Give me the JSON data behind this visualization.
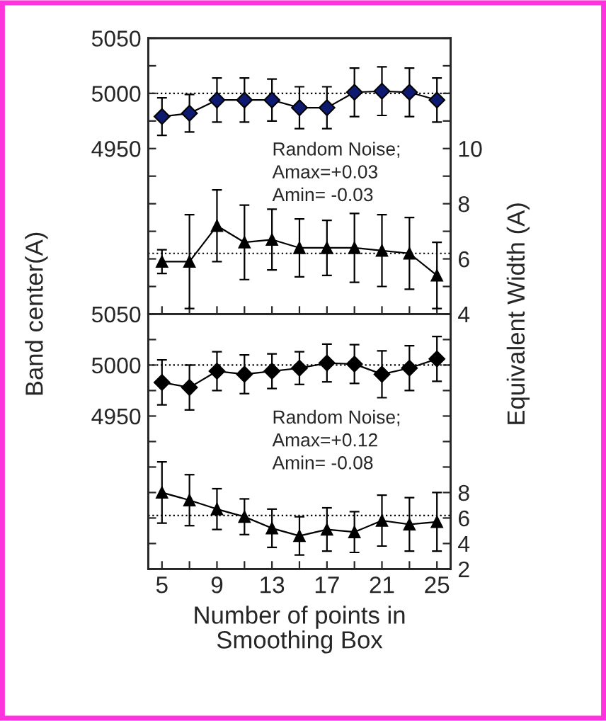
{
  "chart_data": [
    {
      "type": "line",
      "ylabel": "Band center(A)",
      "y2label": "Equivalent Width (A)",
      "x": [
        5,
        7,
        9,
        11,
        13,
        15,
        17,
        19,
        21,
        23,
        25
      ],
      "xlim": [
        4,
        26
      ],
      "xticks": [
        {
          "value": 5,
          "label": null
        },
        {
          "value": 7,
          "label": null
        },
        {
          "value": 9,
          "label": null
        },
        {
          "value": 11,
          "label": null
        },
        {
          "value": 13,
          "label": null
        },
        {
          "value": 15,
          "label": null
        },
        {
          "value": 17,
          "label": null
        },
        {
          "value": 19,
          "label": null
        },
        {
          "value": 21,
          "label": null
        },
        {
          "value": 23,
          "label": null
        },
        {
          "value": 25,
          "label": null
        }
      ],
      "ylim": [
        4800,
        5050
      ],
      "yticks": [
        {
          "value": 4800,
          "label": null
        },
        {
          "value": 4825,
          "label": null
        },
        {
          "value": 4850,
          "label": null
        },
        {
          "value": 4875,
          "label": null
        },
        {
          "value": 4900,
          "label": null
        },
        {
          "value": 4925,
          "label": null
        },
        4950,
        {
          "value": 4975,
          "label": null
        },
        5000,
        {
          "value": 5025,
          "label": null
        },
        5050
      ],
      "y2lim": [
        4,
        14
      ],
      "y2ticks": [
        4,
        {
          "value": 5,
          "label": null
        },
        6,
        {
          "value": 7,
          "label": null
        },
        8,
        {
          "value": 9,
          "label": null
        },
        10,
        {
          "value": 11,
          "label": null
        },
        {
          "value": 12,
          "label": null
        },
        {
          "value": 13,
          "label": null
        },
        {
          "value": 14,
          "label": null
        }
      ],
      "tick_labels": "y",
      "line_style": "solid",
      "grid": false,
      "legend": false,
      "series": [
        {
          "color": "#0d1a70",
          "marker": "diamond",
          "values": [
            4979,
            4982,
            4994,
            4994,
            4994,
            4987,
            4987,
            5001,
            5002,
            5001,
            4994
          ],
          "errors": [
            17,
            17,
            20,
            20,
            19,
            19,
            19,
            22,
            22,
            22,
            20
          ]
        },
        {
          "color": "#000000",
          "marker": "triangle",
          "axis": "y2",
          "values": [
            5.9,
            5.9,
            7.2,
            6.6,
            6.7,
            6.4,
            6.4,
            6.4,
            6.3,
            6.2,
            5.4
          ],
          "errors": [
            0.43,
            1.7,
            1.3,
            1.35,
            1.1,
            1.05,
            1.0,
            1.25,
            1.3,
            1.3,
            1.2
          ]
        }
      ],
      "ref_lines": [
        {
          "axis": "y",
          "value": 5000,
          "color": "#000000",
          "line_style": "dotted"
        },
        {
          "axis": "y2",
          "value": 6.2,
          "color": "#000000",
          "line_style": "dotted"
        }
      ],
      "annotations": [
        "Random Noise;\nAmax=+0.03\nAmin= -0.03"
      ]
    },
    {
      "type": "line",
      "xlabel": "Number of points in\nSmoothing Box",
      "x": [
        5,
        7,
        9,
        11,
        13,
        15,
        17,
        19,
        21,
        23,
        25
      ],
      "xlim": [
        4,
        26
      ],
      "xticks": [
        5,
        {
          "value": 7,
          "label": null
        },
        9,
        {
          "value": 11,
          "label": null
        },
        13,
        {
          "value": 15,
          "label": null
        },
        17,
        {
          "value": 19,
          "label": null
        },
        21,
        {
          "value": 23,
          "label": null
        },
        25
      ],
      "ylim": [
        4800,
        5050
      ],
      "yticks": [
        {
          "value": 4800,
          "label": null
        },
        {
          "value": 4825,
          "label": null
        },
        {
          "value": 4850,
          "label": null
        },
        {
          "value": 4875,
          "label": null
        },
        {
          "value": 4900,
          "label": null
        },
        {
          "value": 4925,
          "label": null
        },
        4950,
        {
          "value": 4975,
          "label": null
        },
        5000,
        {
          "value": 5025,
          "label": null
        },
        5050
      ],
      "y2lim": [
        2,
        22
      ],
      "y2ticks": [
        2,
        4,
        6,
        8,
        {
          "value": 10,
          "label": null
        },
        {
          "value": 12,
          "label": null
        },
        {
          "value": 14,
          "label": null
        },
        {
          "value": 16,
          "label": null
        },
        {
          "value": 18,
          "label": null
        },
        {
          "value": 20,
          "label": null
        },
        {
          "value": 22,
          "label": null
        }
      ],
      "line_style": "solid",
      "grid": false,
      "legend": false,
      "series": [
        {
          "color": "#000000",
          "marker": "diamond",
          "values": [
            4983,
            4978,
            4994,
            4991,
            4994,
            4997,
            5002,
            5001,
            4991,
            4997,
            5006
          ],
          "errors": [
            22,
            22,
            19,
            19,
            17,
            16,
            18.5,
            19,
            23,
            22,
            22
          ]
        },
        {
          "color": "#000000",
          "marker": "triangle",
          "axis": "y2",
          "values": [
            8.0,
            7.4,
            6.7,
            6.1,
            5.2,
            4.6,
            5.1,
            4.9,
            5.8,
            5.5,
            5.7
          ],
          "errors": [
            2.4,
            2.0,
            1.6,
            1.4,
            1.5,
            1.5,
            1.7,
            1.6,
            2.0,
            2.1,
            2.3
          ]
        }
      ],
      "ref_lines": [
        {
          "axis": "y",
          "value": 5000,
          "color": "#000000",
          "line_style": "dotted"
        },
        {
          "axis": "y2",
          "value": 6.2,
          "color": "#000000",
          "line_style": "dotted"
        }
      ],
      "annotations": [
        "Random Noise;\nAmax=+0.12\nAmin= -0.08"
      ]
    }
  ]
}
